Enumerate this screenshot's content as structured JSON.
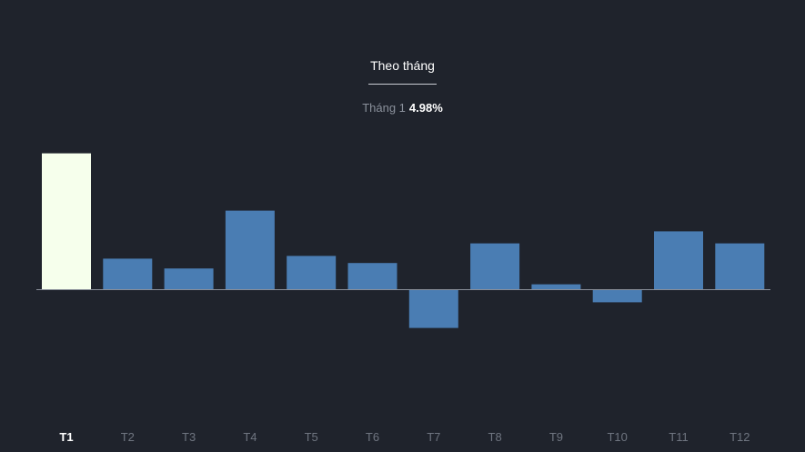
{
  "tab": {
    "label": "Theo tháng"
  },
  "readout": {
    "month_label": "Tháng 1",
    "value_label": "4.98%"
  },
  "colors": {
    "background": "#1f232c",
    "bar": "#4a7db3",
    "selected_bar": "#f6ffec",
    "axis": "#8a8f99",
    "tick_active": "#ffffff",
    "tick_inactive": "#6f7580"
  },
  "chart_data": {
    "type": "bar",
    "categories": [
      "T1",
      "T2",
      "T3",
      "T4",
      "T5",
      "T6",
      "T7",
      "T8",
      "T9",
      "T10",
      "T11",
      "T12"
    ],
    "values": [
      4.98,
      1.12,
      0.76,
      2.88,
      1.22,
      0.96,
      -1.42,
      1.68,
      0.18,
      -0.48,
      2.12,
      1.68
    ],
    "selected_index": 0,
    "title": "",
    "xlabel": "",
    "ylabel": "",
    "ylim": [
      -4.6,
      5
    ],
    "grid": false,
    "legend": "none"
  }
}
